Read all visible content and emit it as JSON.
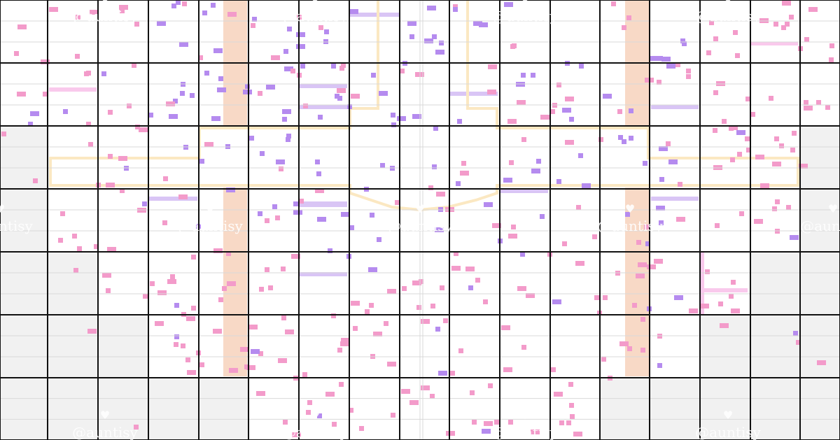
{
  "pattern": {
    "columns": 16,
    "rows": 7,
    "subdivisions_per_block": 3
  },
  "colors": {
    "background": "#ffffff",
    "grey_fill": "#f1f1f1",
    "block_line": "#111111",
    "thin_line": "#d9d9d9",
    "peach": "#f8d9c6",
    "yellow_outline": "#fbe8c2",
    "lavender": "#d9c5f5",
    "purple_stitch": "#b58bef",
    "pink_stitch": "#f39bca",
    "pink_band": "#f9c9ec",
    "watermark": "#ffffff"
  },
  "watermark": {
    "text": "@auntisy",
    "icon": "heart-icon"
  }
}
